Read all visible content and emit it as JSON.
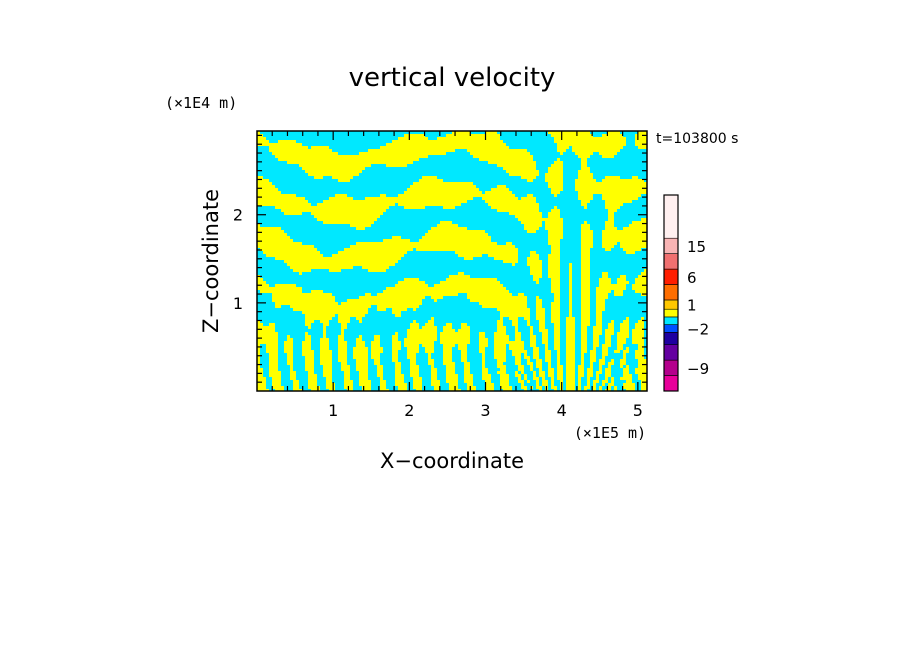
{
  "chart_data": {
    "type": "heatmap",
    "title": "vertical velocity",
    "xlabel": "X−coordinate",
    "ylabel": "Z−coordinate",
    "x_unit": "(×1E5 m)",
    "y_unit": "(×1E4 m)",
    "time_label": "t=103800 s",
    "xlim": [
      0,
      5.12
    ],
    "ylim": [
      0,
      2.95
    ],
    "x_ticks": [
      1,
      2,
      3,
      4,
      5
    ],
    "y_ticks": [
      1,
      2
    ],
    "pattern_colors": [
      "#00e8ff",
      "#ffff00"
    ],
    "colorbar": {
      "levels": [
        {
          "color": "#e8009a"
        },
        {
          "color": "#b4008c"
        },
        {
          "color": "#6400a0"
        },
        {
          "color": "#1e00a0"
        },
        {
          "color": "#0050ff"
        },
        {
          "color": "#00e8ff"
        },
        {
          "color": "#ffff00"
        },
        {
          "color": "#ffc800"
        },
        {
          "color": "#ff6e00"
        },
        {
          "color": "#ff1e00"
        },
        {
          "color": "#f07070"
        },
        {
          "color": "#f8b4b4"
        },
        {
          "color": "#fff0f0"
        }
      ],
      "labels": [
        {
          "text": "15",
          "at": 11
        },
        {
          "text": "6",
          "at": 9
        },
        {
          "text": "1",
          "at": 7
        },
        {
          "text": "−2",
          "at": 4
        },
        {
          "text": "−9",
          "at": 1
        }
      ]
    }
  }
}
